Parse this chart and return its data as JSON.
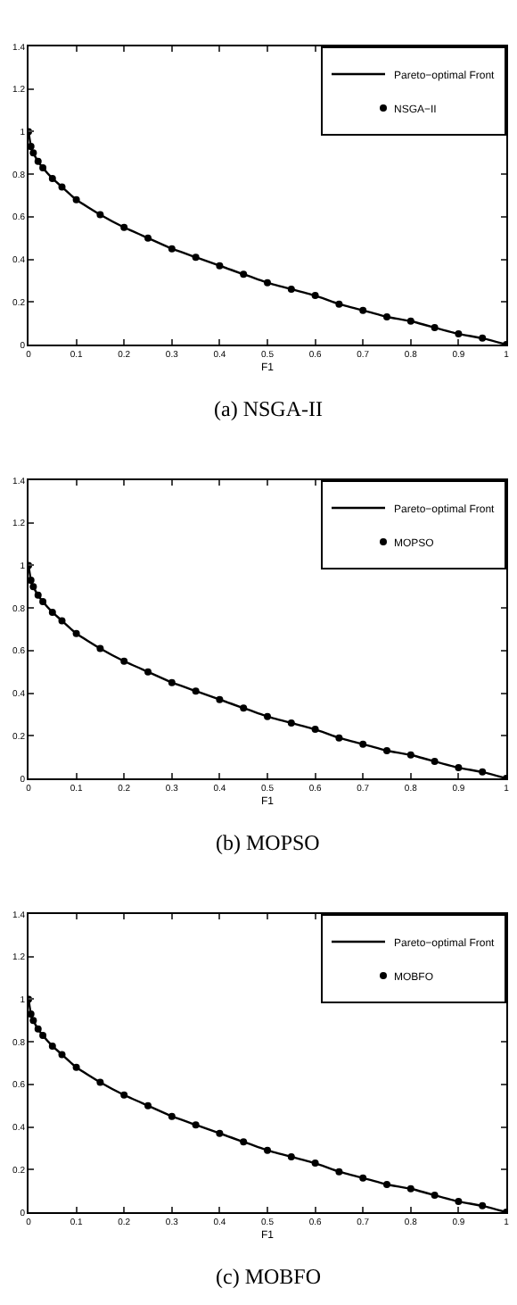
{
  "chart_data": [
    {
      "type": "line",
      "xlabel": "F1",
      "annotations": [
        "(a) NSGA-II"
      ],
      "legend": "top right",
      "xlim": [
        0,
        1
      ],
      "xticks": [
        0,
        0.1,
        0.2,
        0.3,
        0.4,
        0.5,
        0.6,
        0.7,
        0.8,
        0.9,
        1
      ],
      "ylim": [
        0,
        1.4
      ],
      "yticks": [
        0,
        0.2,
        0.4,
        0.6,
        0.8,
        1,
        1.2,
        1.4
      ],
      "x": [
        0,
        0.005,
        0.01,
        0.02,
        0.03,
        0.05,
        0.07,
        0.1,
        0.15,
        0.2,
        0.25,
        0.3,
        0.35,
        0.4,
        0.45,
        0.5,
        0.55,
        0.6,
        0.65,
        0.7,
        0.75,
        0.8,
        0.85,
        0.9,
        0.95,
        1
      ],
      "series": [
        {
          "name": "Pareto−optimal Front",
          "type": "line",
          "color": "#000000",
          "values": [
            1,
            0.93,
            0.9,
            0.86,
            0.83,
            0.78,
            0.74,
            0.68,
            0.61,
            0.55,
            0.5,
            0.45,
            0.41,
            0.37,
            0.33,
            0.29,
            0.26,
            0.23,
            0.19,
            0.16,
            0.13,
            0.11,
            0.08,
            0.05,
            0.03,
            0
          ]
        },
        {
          "name": "NSGA−II",
          "type": "scatter",
          "marker": "circle",
          "color": "#000000",
          "values": [
            1,
            0.93,
            0.9,
            0.86,
            0.83,
            0.78,
            0.74,
            0.68,
            0.61,
            0.55,
            0.5,
            0.45,
            0.41,
            0.37,
            0.33,
            0.29,
            0.26,
            0.23,
            0.19,
            0.16,
            0.13,
            0.11,
            0.08,
            0.05,
            0.03,
            0
          ]
        }
      ]
    },
    {
      "type": "line",
      "xlabel": "F1",
      "annotations": [
        "(b) MOPSO"
      ],
      "legend": "top right",
      "xlim": [
        0,
        1
      ],
      "xticks": [
        0,
        0.1,
        0.2,
        0.3,
        0.4,
        0.5,
        0.6,
        0.7,
        0.8,
        0.9,
        1
      ],
      "ylim": [
        0,
        1.4
      ],
      "yticks": [
        0,
        0.2,
        0.4,
        0.6,
        0.8,
        1,
        1.2,
        1.4
      ],
      "x": [
        0,
        0.005,
        0.01,
        0.02,
        0.03,
        0.05,
        0.07,
        0.1,
        0.15,
        0.2,
        0.25,
        0.3,
        0.35,
        0.4,
        0.45,
        0.5,
        0.55,
        0.6,
        0.65,
        0.7,
        0.75,
        0.8,
        0.85,
        0.9,
        0.95,
        1
      ],
      "series": [
        {
          "name": "Pareto−optimal Front",
          "type": "line",
          "color": "#000000",
          "values": [
            1,
            0.93,
            0.9,
            0.86,
            0.83,
            0.78,
            0.74,
            0.68,
            0.61,
            0.55,
            0.5,
            0.45,
            0.41,
            0.37,
            0.33,
            0.29,
            0.26,
            0.23,
            0.19,
            0.16,
            0.13,
            0.11,
            0.08,
            0.05,
            0.03,
            0
          ]
        },
        {
          "name": "MOPSO",
          "type": "scatter",
          "marker": "circle",
          "color": "#000000",
          "values": [
            1,
            0.93,
            0.9,
            0.86,
            0.83,
            0.78,
            0.74,
            0.68,
            0.61,
            0.55,
            0.5,
            0.45,
            0.41,
            0.37,
            0.33,
            0.29,
            0.26,
            0.23,
            0.19,
            0.16,
            0.13,
            0.11,
            0.08,
            0.05,
            0.03,
            0
          ]
        }
      ]
    },
    {
      "type": "line",
      "xlabel": "F1",
      "annotations": [
        "(c) MOBFO"
      ],
      "legend": "top right",
      "xlim": [
        0,
        1
      ],
      "xticks": [
        0,
        0.1,
        0.2,
        0.3,
        0.4,
        0.5,
        0.6,
        0.7,
        0.8,
        0.9,
        1
      ],
      "ylim": [
        0,
        1.4
      ],
      "yticks": [
        0,
        0.2,
        0.4,
        0.6,
        0.8,
        1,
        1.2,
        1.4
      ],
      "x": [
        0,
        0.005,
        0.01,
        0.02,
        0.03,
        0.05,
        0.07,
        0.1,
        0.15,
        0.2,
        0.25,
        0.3,
        0.35,
        0.4,
        0.45,
        0.5,
        0.55,
        0.6,
        0.65,
        0.7,
        0.75,
        0.8,
        0.85,
        0.9,
        0.95,
        1
      ],
      "series": [
        {
          "name": "Pareto−optimal Front",
          "type": "line",
          "color": "#000000",
          "values": [
            1,
            0.93,
            0.9,
            0.86,
            0.83,
            0.78,
            0.74,
            0.68,
            0.61,
            0.55,
            0.5,
            0.45,
            0.41,
            0.37,
            0.33,
            0.29,
            0.26,
            0.23,
            0.19,
            0.16,
            0.13,
            0.11,
            0.08,
            0.05,
            0.03,
            0
          ]
        },
        {
          "name": "MOBFO",
          "type": "scatter",
          "marker": "circle",
          "color": "#000000",
          "values": [
            1,
            0.93,
            0.9,
            0.86,
            0.83,
            0.78,
            0.74,
            0.68,
            0.61,
            0.55,
            0.5,
            0.45,
            0.41,
            0.37,
            0.33,
            0.29,
            0.26,
            0.23,
            0.19,
            0.16,
            0.13,
            0.11,
            0.08,
            0.05,
            0.03,
            0
          ]
        }
      ]
    }
  ]
}
